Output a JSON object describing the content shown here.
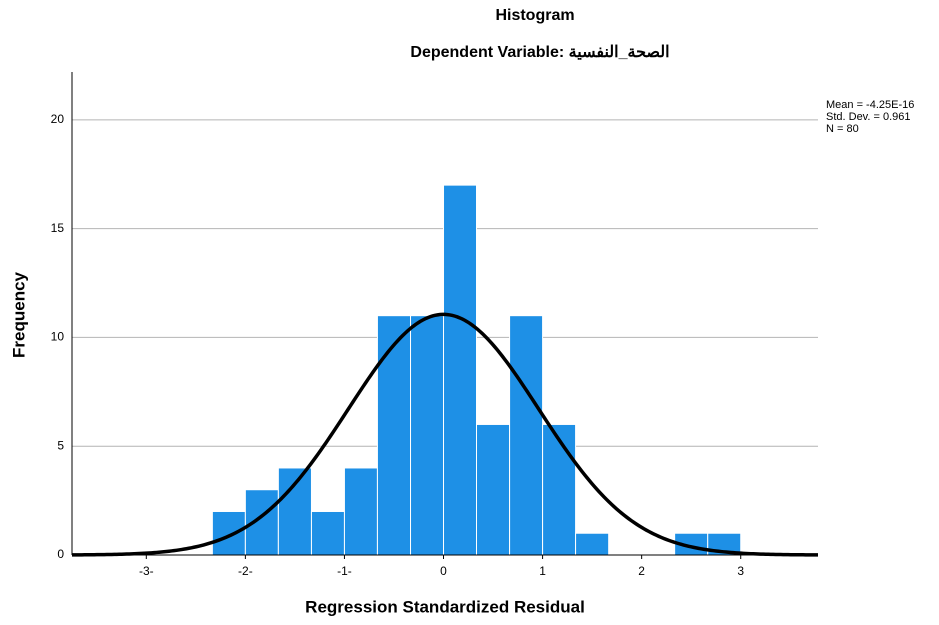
{
  "chart_data": {
    "type": "histogram",
    "title": "Histogram",
    "subtitle": "Dependent Variable: الصحة_النفسية",
    "x_label": "Regression Standardized Residual",
    "y_label": "Frequency",
    "bins": [
      -2.333,
      -2,
      -1.667,
      -1.333,
      -1,
      -0.667,
      -0.333,
      0,
      0.333,
      0.667,
      1,
      1.333,
      1.667,
      2,
      2.333,
      2.667,
      3
    ],
    "values": [
      2,
      3,
      4,
      2,
      4,
      11,
      11,
      17,
      6,
      11,
      6,
      1,
      0,
      0,
      1,
      1
    ],
    "color": "#1e90e6",
    "xlim": [
      -3.75,
      3.78
    ],
    "xticks": [
      {
        "value": -3,
        "label": "-3-"
      },
      {
        "value": -2,
        "label": "-2-"
      },
      {
        "value": -1,
        "label": "-1-"
      },
      0,
      1,
      2,
      3
    ],
    "ylim": [
      0,
      22.2
    ],
    "yticks": [
      0,
      5,
      10,
      15,
      20
    ],
    "grid": true,
    "stats": {
      "mean": {
        "value": -4.25e-16,
        "label": "Mean = -4.25E-16"
      },
      "std": {
        "value": 0.961,
        "label": "Std. Dev. = 0.961"
      },
      "n": {
        "value": 80,
        "label": "N = 80"
      }
    },
    "curve_color": "#000000"
  }
}
